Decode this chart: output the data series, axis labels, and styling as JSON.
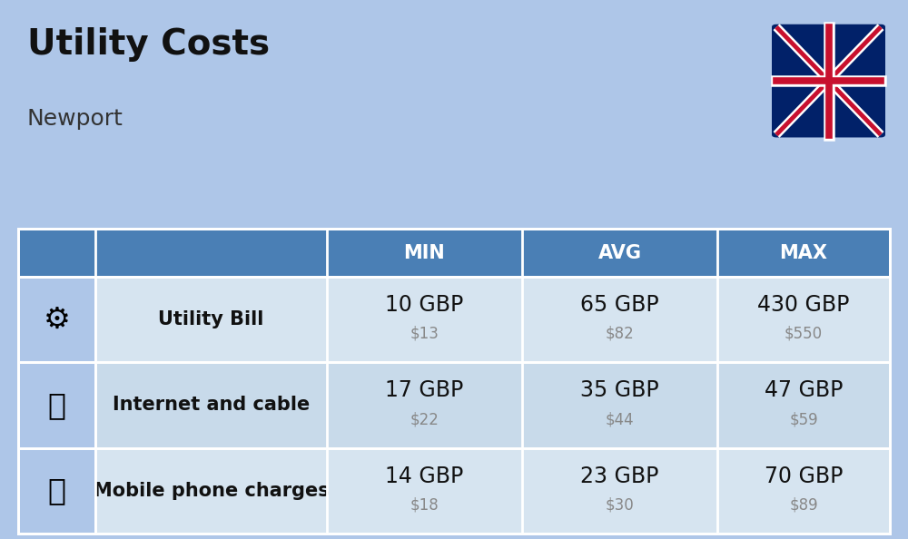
{
  "title": "Utility Costs",
  "subtitle": "Newport",
  "background_color": "#aec6e8",
  "header_bg_color": "#4a7fb5",
  "header_text_color": "#ffffff",
  "col_headers": [
    "MIN",
    "AVG",
    "MAX"
  ],
  "rows": [
    {
      "label": "Utility Bill",
      "min_gbp": "10 GBP",
      "min_usd": "$13",
      "avg_gbp": "65 GBP",
      "avg_usd": "$82",
      "max_gbp": "430 GBP",
      "max_usd": "$550"
    },
    {
      "label": "Internet and cable",
      "min_gbp": "17 GBP",
      "min_usd": "$22",
      "avg_gbp": "35 GBP",
      "avg_usd": "$44",
      "max_gbp": "47 GBP",
      "max_usd": "$59"
    },
    {
      "label": "Mobile phone charges",
      "min_gbp": "14 GBP",
      "min_usd": "$18",
      "avg_gbp": "23 GBP",
      "avg_usd": "$30",
      "max_gbp": "70 GBP",
      "max_usd": "$89"
    }
  ],
  "title_fontsize": 28,
  "subtitle_fontsize": 18,
  "header_fontsize": 15,
  "label_fontsize": 15,
  "gbp_fontsize": 17,
  "usd_fontsize": 12,
  "usd_color": "#888888",
  "label_color": "#111111",
  "gbp_color": "#111111",
  "row_colors": [
    "#d6e4f0",
    "#c8daea",
    "#d6e4f0"
  ],
  "flag_blue": "#012169",
  "flag_red": "#C8102E"
}
